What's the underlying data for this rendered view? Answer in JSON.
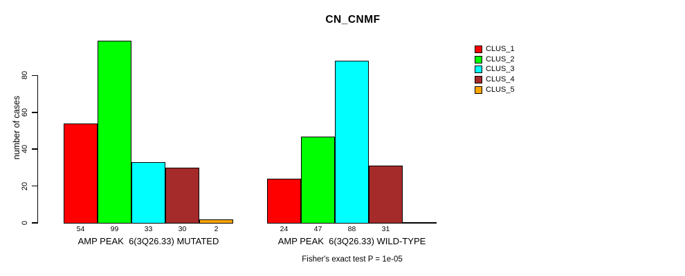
{
  "chart": {
    "title": "CN_CNMF",
    "ylabel": "number of cases",
    "note": "Fisher's exact test P = 1e-05"
  },
  "chart_data": {
    "type": "bar",
    "title": "CN_CNMF",
    "xlabel": "",
    "ylabel": "number of cases",
    "ylim": [
      0,
      105
    ],
    "yticks": [
      0,
      20,
      40,
      60,
      80
    ],
    "grid": false,
    "legend_position": "right",
    "categories": [
      "AMP PEAK  6(3Q26.33) MUTATED",
      "AMP PEAK  6(3Q26.33) WILD-TYPE"
    ],
    "series": [
      {
        "name": "CLUS_1",
        "color": "#FF0000",
        "values": [
          54,
          24
        ]
      },
      {
        "name": "CLUS_2",
        "color": "#00FF00",
        "values": [
          99,
          47
        ]
      },
      {
        "name": "CLUS_3",
        "color": "#00FFFF",
        "values": [
          33,
          88
        ]
      },
      {
        "name": "CLUS_4",
        "color": "#A52A2A",
        "values": [
          30,
          31
        ]
      },
      {
        "name": "CLUS_5",
        "color": "#FFA500",
        "values": [
          2,
          0
        ]
      }
    ],
    "bar_value_labels": [
      [
        "54",
        "99",
        "33",
        "30",
        "2"
      ],
      [
        "24",
        "47",
        "88",
        "31",
        ""
      ]
    ],
    "annotation": "Fisher's exact test P = 1e-05",
    "colors": {
      "axis": "#000000",
      "background": "#FFFFFF",
      "bar_border": "#000000"
    }
  }
}
